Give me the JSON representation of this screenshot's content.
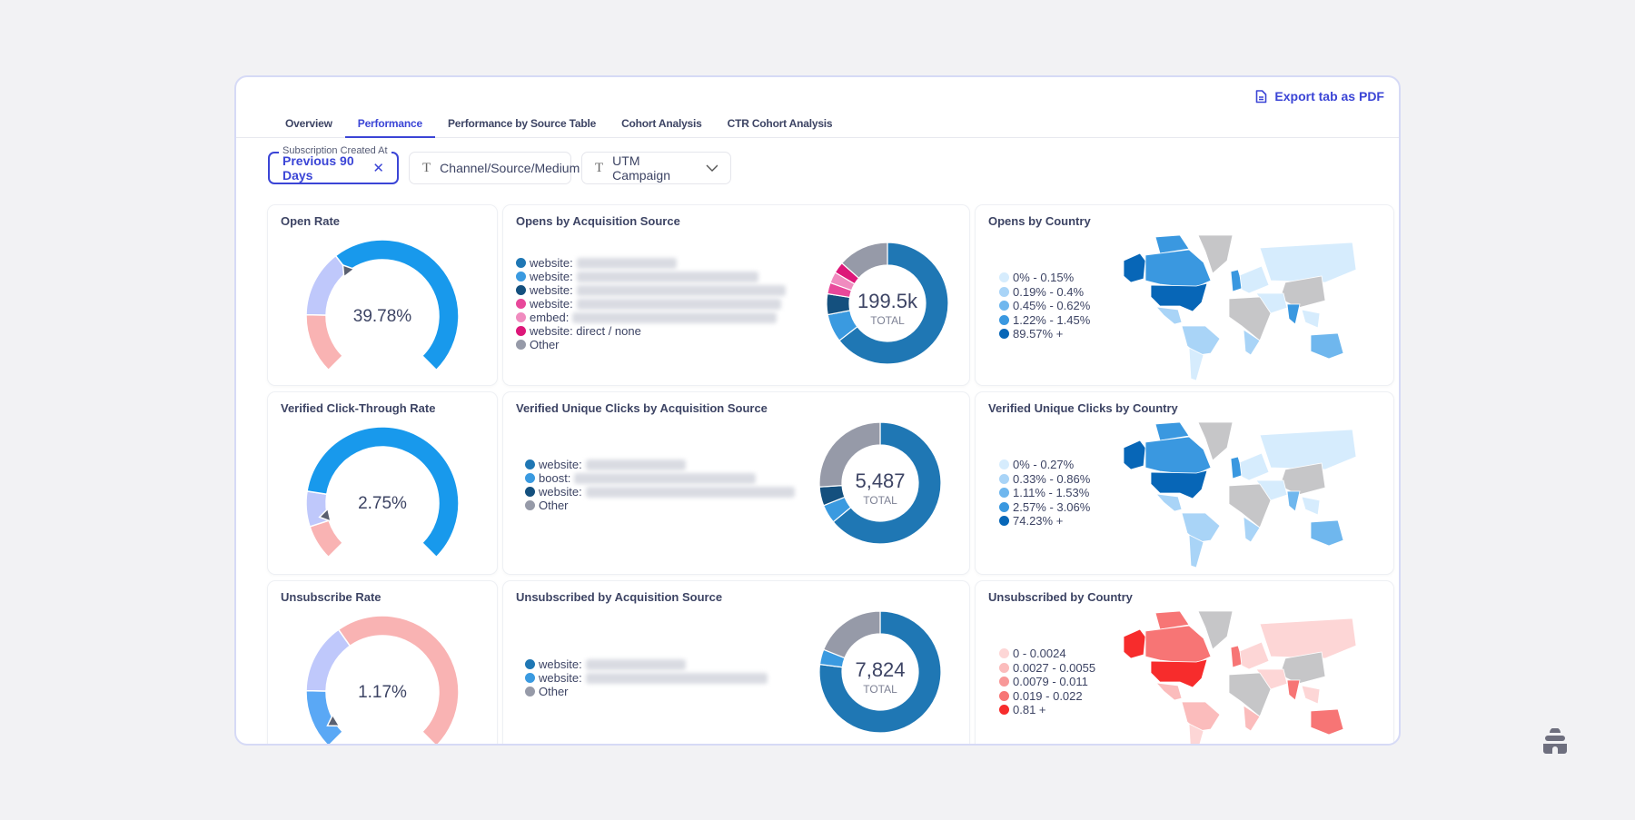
{
  "export_label": "Export tab as PDF",
  "tabs": [
    {
      "label": "Overview",
      "active": false
    },
    {
      "label": "Performance",
      "active": true
    },
    {
      "label": "Performance by Source Table",
      "active": false
    },
    {
      "label": "Cohort Analysis",
      "active": false
    },
    {
      "label": "CTR Cohort Analysis",
      "active": false
    }
  ],
  "filters": {
    "date": {
      "label": "Subscription Created At",
      "value": "Previous 90 Days"
    },
    "channel": {
      "placeholder": "Channel/Source/Medium"
    },
    "campaign": {
      "placeholder": "UTM Campaign"
    }
  },
  "colors": {
    "accent": "#3b45d6",
    "gauge_blue": "#1899ec",
    "gauge_blue_light": "#5aa8f5",
    "gauge_lavender": "#bfc8fb",
    "gauge_pink": "#f9b3b3",
    "blue_scale": [
      "#d6ecfd",
      "#a9d4f7",
      "#6fb7ee",
      "#3a98e0",
      "#0766b7"
    ],
    "red_scale": [
      "#fdd6d6",
      "#fbbcbc",
      "#f89898",
      "#f77575",
      "#f72c2c"
    ],
    "no_data": "#c6c6c8"
  },
  "gauges": [
    {
      "title": "Open Rate",
      "value": "39.78%",
      "marker": 0.36,
      "segments": [
        {
          "to": 0.17,
          "color": "#f9b3b3"
        },
        {
          "to": 0.36,
          "color": "#bfc8fb"
        },
        {
          "to": 1,
          "color": "#1899ec"
        }
      ]
    },
    {
      "title": "Verified Click-Through Rate",
      "value": "2.75%",
      "marker": 0.12,
      "segments": [
        {
          "to": 0.1,
          "color": "#f9b3b3"
        },
        {
          "to": 0.2,
          "color": "#bfc8fb"
        },
        {
          "to": 1,
          "color": "#1899ec"
        }
      ]
    },
    {
      "title": "Unsubscribe Rate",
      "value": "1.17%",
      "marker": 0.05,
      "segments": [
        {
          "to": 0.17,
          "color": "#5aa8f5"
        },
        {
          "to": 0.37,
          "color": "#bfc8fb"
        },
        {
          "to": 1,
          "color": "#f9b3b3"
        }
      ]
    }
  ],
  "donuts": [
    {
      "title": "Opens by Acquisition Source",
      "total": "199.5k",
      "total_label": "TOTAL",
      "items": [
        {
          "label": "website:",
          "blurred": true,
          "color": "#1f77b4",
          "share": 0.645
        },
        {
          "label": "website:",
          "blurred": true,
          "color": "#3a9ae0",
          "share": 0.075
        },
        {
          "label": "website:",
          "blurred": true,
          "color": "#14507e",
          "share": 0.055
        },
        {
          "label": "website:",
          "blurred": true,
          "color": "#e8489a",
          "share": 0.03
        },
        {
          "label": "embed:",
          "blurred": true,
          "color": "#f08bbf",
          "share": 0.03
        },
        {
          "label": "website: direct / none",
          "blurred": false,
          "color": "#dd1779",
          "share": 0.03
        },
        {
          "label": "Other",
          "blurred": false,
          "color": "#969aa8",
          "share": 0.135
        }
      ]
    },
    {
      "title": "Verified Unique Clicks by Acquisition Source",
      "total": "5,487",
      "total_label": "TOTAL",
      "items": [
        {
          "label": "website:",
          "blurred": true,
          "color": "#1f77b4",
          "share": 0.64
        },
        {
          "label": "boost:",
          "blurred": true,
          "color": "#3a9ae0",
          "share": 0.05
        },
        {
          "label": "website:",
          "blurred": true,
          "color": "#14507e",
          "share": 0.05
        },
        {
          "label": "Other",
          "blurred": false,
          "color": "#969aa8",
          "share": 0.26
        }
      ]
    },
    {
      "title": "Unsubscribed by Acquisition Source",
      "total": "7,824",
      "total_label": "TOTAL",
      "items": [
        {
          "label": "website:",
          "blurred": true,
          "color": "#1f77b4",
          "share": 0.77
        },
        {
          "label": "website:",
          "blurred": true,
          "color": "#3a9ae0",
          "share": 0.04
        },
        {
          "label": "Other",
          "blurred": false,
          "color": "#969aa8",
          "share": 0.19
        }
      ]
    }
  ],
  "maps": [
    {
      "title": "Opens by Country",
      "scale": "blue",
      "legend": [
        "0% - 0.15%",
        "0.19% - 0.4%",
        "0.45% - 0.62%",
        "1.22% - 1.45%",
        "89.57% +"
      ],
      "countries": {
        "Alaska (US)": 4,
        "Canada": 3,
        "Canadian Arctic": 3,
        "Greenland": -1,
        "United States": 4,
        "Mexico": 1,
        "South America": 1,
        "Southern Cone": 0,
        "Western Europe": 3,
        "Europe": 0,
        "Russia": 0,
        "China": -1,
        "Middle East": 0,
        "India": 3,
        "Africa": -1,
        "Southern Africa": 1,
        "Southeast Asia": 0,
        "Australia": 2
      }
    },
    {
      "title": "Verified Unique Clicks by Country",
      "scale": "blue",
      "legend": [
        "0% - 0.27%",
        "0.33% - 0.86%",
        "1.11% - 1.53%",
        "2.57% - 3.06%",
        "74.23% +"
      ],
      "countries": {
        "Alaska (US)": 4,
        "Canada": 3,
        "Canadian Arctic": 3,
        "Greenland": -1,
        "United States": 4,
        "Mexico": 1,
        "South America": 1,
        "Southern Cone": 1,
        "Western Europe": 3,
        "Europe": 0,
        "Russia": 0,
        "China": -1,
        "Middle East": 0,
        "India": 2,
        "Africa": -1,
        "Southern Africa": 1,
        "Southeast Asia": 0,
        "Australia": 2
      }
    },
    {
      "title": "Unsubscribed by Country",
      "scale": "red",
      "legend": [
        "0 - 0.0024",
        "0.0027 - 0.0055",
        "0.0079 - 0.011",
        "0.019 - 0.022",
        "0.81 +"
      ],
      "countries": {
        "Alaska (US)": 4,
        "Canada": 3,
        "Canadian Arctic": 3,
        "Greenland": -1,
        "United States": 4,
        "Mexico": 1,
        "South America": 1,
        "Southern Cone": 0,
        "Western Europe": 3,
        "Europe": 0,
        "Russia": 0,
        "China": -1,
        "Middle East": 0,
        "India": 3,
        "Africa": -1,
        "Southern Africa": 1,
        "Southeast Asia": 0,
        "Australia": 3
      }
    }
  ]
}
